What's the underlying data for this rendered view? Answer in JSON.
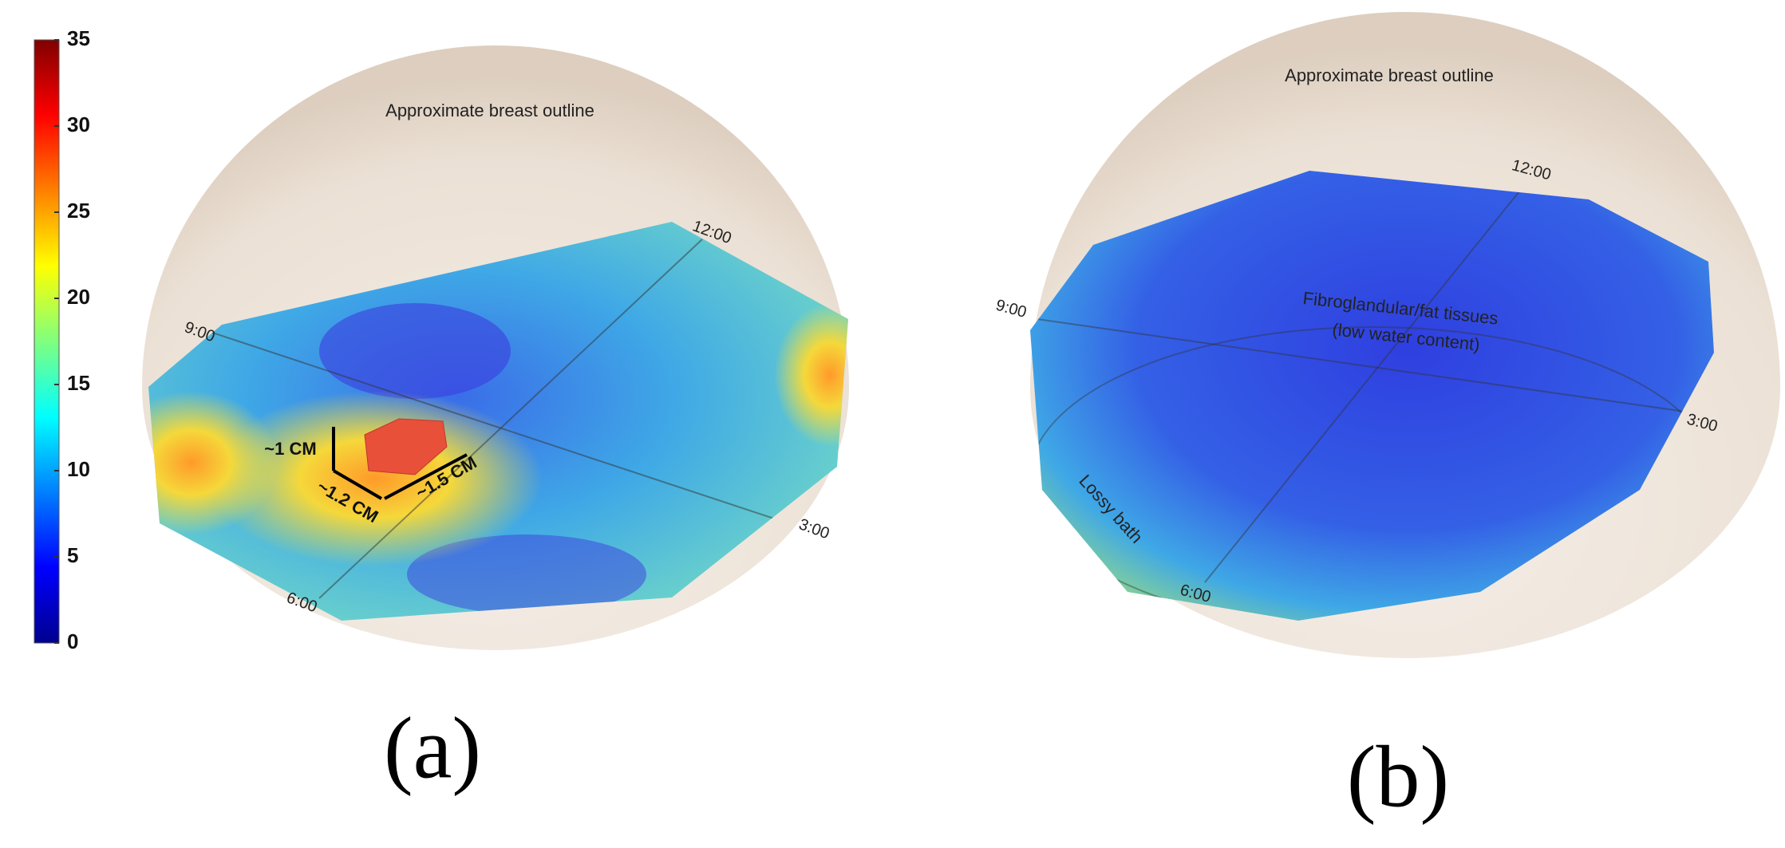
{
  "colorbar": {
    "lim": [
      0,
      35
    ],
    "ticks": [
      0,
      5,
      10,
      15,
      20,
      25,
      30,
      35
    ]
  },
  "panel_a": {
    "label": "(a)",
    "outline": "Approximate breast outline",
    "clock": {
      "twelve": "12:00",
      "nine": "9:00",
      "three": "3:00",
      "six": "6:00"
    },
    "dimensions": {
      "height": "~1 CM",
      "width": "~1.2 CM",
      "length": "~1.5 CM"
    }
  },
  "panel_b": {
    "label": "(b)",
    "outline": "Approximate breast outline",
    "clock": {
      "twelve": "12:00",
      "nine": "9:00",
      "three": "3:00",
      "six": "6:00"
    },
    "tissue": "Fibroglandular/fat tissues",
    "tissue_note": "(low water content)",
    "bath": "Lossy bath"
  }
}
